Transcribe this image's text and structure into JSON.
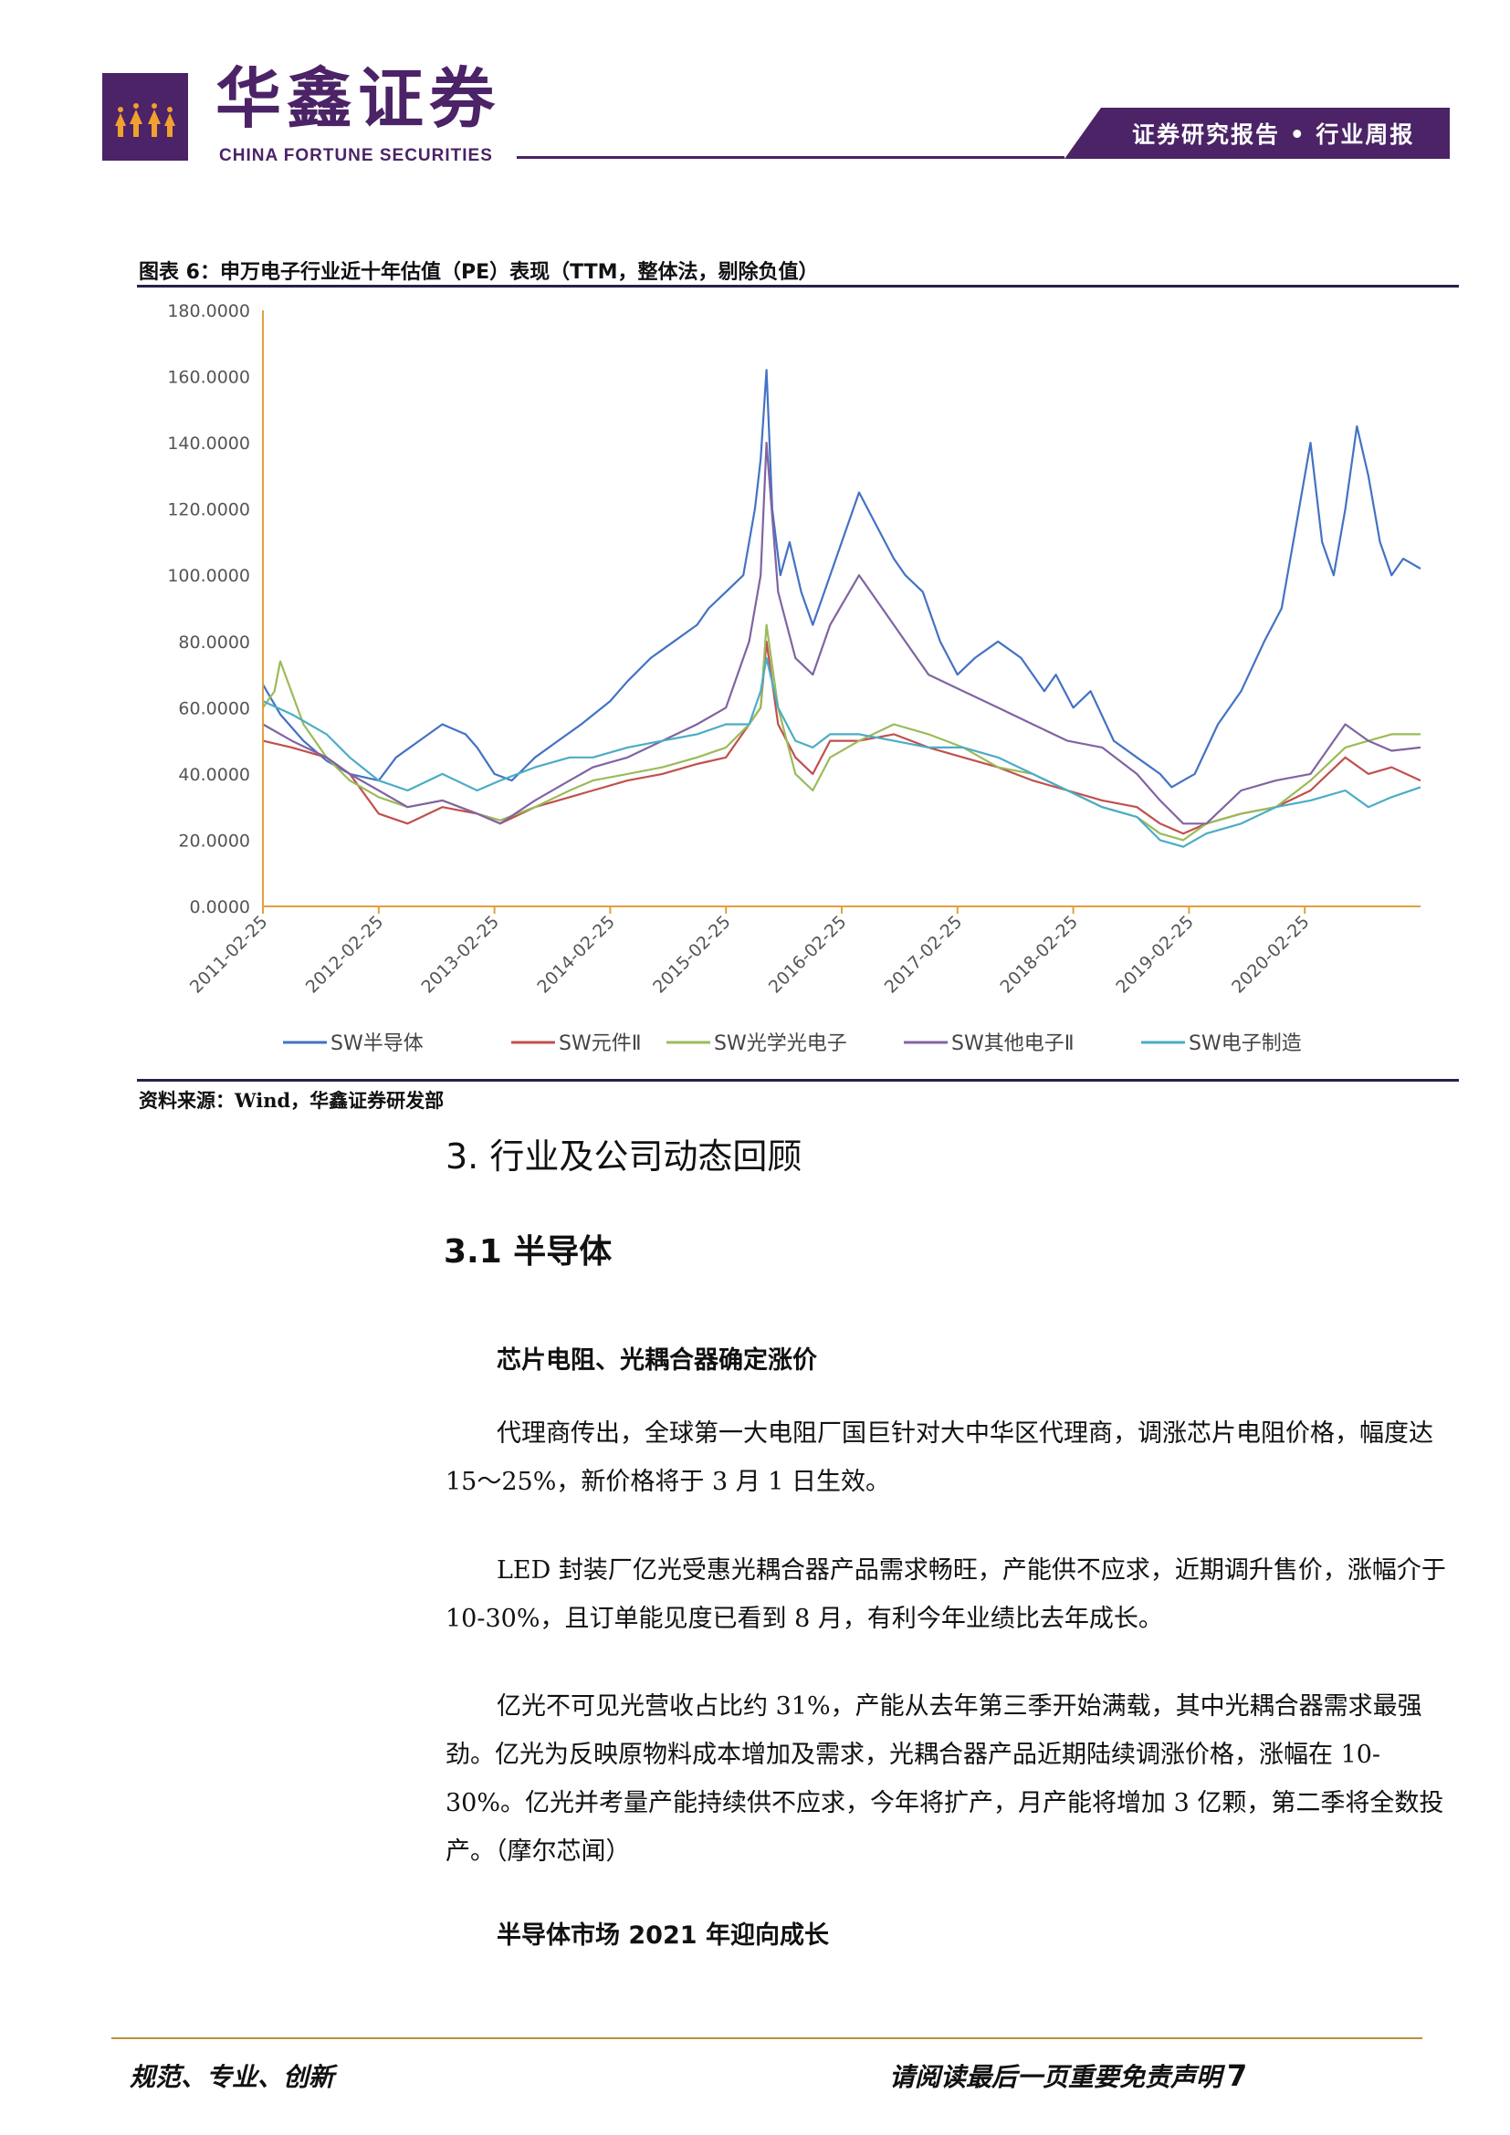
{
  "header": {
    "logo_cn": "华鑫证券",
    "logo_en": "CHINA FORTUNE SECURITIES",
    "report_type": "证券研究报告 • 行业周报"
  },
  "figure": {
    "caption": "图表 6：申万电子行业近十年估值（PE）表现（TTM，整体法，剔除负值）",
    "source": "资料来源：Wind，华鑫证券研发部"
  },
  "chart_data": {
    "type": "line",
    "ylim": [
      0,
      180
    ],
    "y_ticks": [
      "0.0000",
      "20.0000",
      "40.0000",
      "60.0000",
      "80.0000",
      "100.0000",
      "120.0000",
      "140.0000",
      "160.0000",
      "180.0000"
    ],
    "x_ticks": [
      "2011-02-25",
      "2012-02-25",
      "2013-02-25",
      "2014-02-25",
      "2015-02-25",
      "2016-02-25",
      "2017-02-25",
      "2018-02-25",
      "2019-02-25",
      "2020-02-25"
    ],
    "x_range": [
      2011.15,
      2021.15
    ],
    "legend_position": "bottom",
    "series": [
      {
        "name": "SW半导体",
        "color": "#4472c4",
        "x": [
          2011.15,
          2011.3,
          2011.5,
          2011.7,
          2011.9,
          2012.15,
          2012.3,
          2012.5,
          2012.7,
          2012.9,
          2013.0,
          2013.15,
          2013.3,
          2013.5,
          2013.7,
          2013.9,
          2014.15,
          2014.3,
          2014.5,
          2014.7,
          2014.9,
          2015.0,
          2015.15,
          2015.3,
          2015.4,
          2015.45,
          2015.5,
          2015.55,
          2015.62,
          2015.7,
          2015.8,
          2015.9,
          2016.0,
          2016.15,
          2016.3,
          2016.45,
          2016.6,
          2016.7,
          2016.85,
          2017.0,
          2017.15,
          2017.3,
          2017.5,
          2017.7,
          2017.9,
          2018.0,
          2018.15,
          2018.3,
          2018.5,
          2018.7,
          2018.9,
          2019.0,
          2019.1,
          2019.2,
          2019.4,
          2019.6,
          2019.8,
          2019.95,
          2020.0,
          2020.1,
          2020.2,
          2020.3,
          2020.4,
          2020.5,
          2020.6,
          2020.7,
          2020.8,
          2020.9,
          2021.0,
          2021.15
        ],
        "values": [
          67,
          58,
          50,
          44,
          40,
          38,
          45,
          50,
          55,
          52,
          48,
          40,
          38,
          45,
          50,
          55,
          62,
          68,
          75,
          80,
          85,
          90,
          95,
          100,
          120,
          135,
          162,
          120,
          100,
          110,
          95,
          85,
          95,
          110,
          125,
          115,
          105,
          100,
          95,
          80,
          70,
          75,
          80,
          75,
          65,
          70,
          60,
          65,
          50,
          45,
          40,
          36,
          38,
          40,
          55,
          65,
          80,
          90,
          100,
          120,
          140,
          110,
          100,
          120,
          145,
          130,
          110,
          100,
          105,
          102
        ]
      },
      {
        "name": "SW元件Ⅱ",
        "color": "#c0504d",
        "x": [
          2011.15,
          2011.4,
          2011.7,
          2011.9,
          2012.15,
          2012.4,
          2012.7,
          2013.0,
          2013.2,
          2013.5,
          2013.8,
          2014.0,
          2014.3,
          2014.6,
          2014.9,
          2015.15,
          2015.35,
          2015.45,
          2015.5,
          2015.6,
          2015.75,
          2015.9,
          2016.05,
          2016.3,
          2016.6,
          2016.9,
          2017.2,
          2017.5,
          2017.8,
          2018.1,
          2018.4,
          2018.7,
          2018.9,
          2019.1,
          2019.3,
          2019.6,
          2019.9,
          2020.2,
          2020.5,
          2020.7,
          2020.9,
          2021.15
        ],
        "values": [
          50,
          48,
          45,
          40,
          28,
          25,
          30,
          28,
          25,
          30,
          33,
          35,
          38,
          40,
          43,
          45,
          55,
          60,
          80,
          55,
          45,
          40,
          50,
          50,
          52,
          48,
          45,
          42,
          38,
          35,
          32,
          30,
          25,
          22,
          25,
          28,
          30,
          35,
          45,
          40,
          42,
          38
        ]
      },
      {
        "name": "SW光学光电子",
        "color": "#9bbb59",
        "x": [
          2011.15,
          2011.25,
          2011.3,
          2011.5,
          2011.7,
          2011.9,
          2012.15,
          2012.4,
          2012.7,
          2013.0,
          2013.2,
          2013.5,
          2013.8,
          2014.0,
          2014.3,
          2014.6,
          2014.9,
          2015.15,
          2015.35,
          2015.45,
          2015.5,
          2015.6,
          2015.75,
          2015.9,
          2016.05,
          2016.3,
          2016.6,
          2016.9,
          2017.2,
          2017.5,
          2017.8,
          2018.1,
          2018.4,
          2018.7,
          2018.9,
          2019.1,
          2019.3,
          2019.6,
          2019.9,
          2020.2,
          2020.5,
          2020.7,
          2020.9,
          2021.15
        ],
        "values": [
          60,
          65,
          74,
          55,
          45,
          38,
          33,
          30,
          32,
          28,
          26,
          30,
          35,
          38,
          40,
          42,
          45,
          48,
          55,
          60,
          85,
          60,
          40,
          35,
          45,
          50,
          55,
          52,
          48,
          42,
          40,
          35,
          30,
          27,
          22,
          20,
          25,
          28,
          30,
          38,
          48,
          50,
          52,
          52
        ]
      },
      {
        "name": "SW其他电子Ⅱ",
        "color": "#8064a2",
        "x": [
          2011.15,
          2011.4,
          2011.7,
          2011.9,
          2012.15,
          2012.4,
          2012.7,
          2013.0,
          2013.2,
          2013.5,
          2013.8,
          2014.0,
          2014.3,
          2014.6,
          2014.9,
          2015.15,
          2015.35,
          2015.45,
          2015.5,
          2015.6,
          2015.75,
          2015.9,
          2016.05,
          2016.3,
          2016.5,
          2016.7,
          2016.9,
          2017.2,
          2017.5,
          2017.8,
          2018.1,
          2018.4,
          2018.7,
          2018.9,
          2019.1,
          2019.3,
          2019.6,
          2019.9,
          2020.2,
          2020.5,
          2020.7,
          2020.9,
          2021.15
        ],
        "values": [
          55,
          50,
          45,
          40,
          35,
          30,
          32,
          28,
          25,
          32,
          38,
          42,
          45,
          50,
          55,
          60,
          80,
          100,
          140,
          95,
          75,
          70,
          85,
          100,
          90,
          80,
          70,
          65,
          60,
          55,
          50,
          48,
          40,
          32,
          25,
          25,
          35,
          38,
          40,
          55,
          50,
          47,
          48
        ]
      },
      {
        "name": "SW电子制造",
        "color": "#4bacc6",
        "x": [
          2011.15,
          2011.4,
          2011.7,
          2011.9,
          2012.15,
          2012.4,
          2012.7,
          2013.0,
          2013.2,
          2013.5,
          2013.8,
          2014.0,
          2014.3,
          2014.6,
          2014.9,
          2015.15,
          2015.35,
          2015.45,
          2015.5,
          2015.6,
          2015.75,
          2015.9,
          2016.05,
          2016.3,
          2016.6,
          2016.9,
          2017.2,
          2017.5,
          2017.8,
          2018.1,
          2018.4,
          2018.7,
          2018.9,
          2019.1,
          2019.3,
          2019.6,
          2019.9,
          2020.2,
          2020.5,
          2020.7,
          2020.9,
          2021.15
        ],
        "values": [
          62,
          58,
          52,
          45,
          38,
          35,
          40,
          35,
          38,
          42,
          45,
          45,
          48,
          50,
          52,
          55,
          55,
          65,
          75,
          60,
          50,
          48,
          52,
          52,
          50,
          48,
          48,
          45,
          40,
          35,
          30,
          27,
          20,
          18,
          22,
          25,
          30,
          32,
          35,
          30,
          33,
          36
        ]
      }
    ]
  },
  "section": {
    "h3": "3.  行业及公司动态回顾",
    "h31": "3.1 半导体"
  },
  "body": {
    "sub1": "芯片电阻、光耦合器确定涨价",
    "p1": "代理商传出，全球第一大电阻厂国巨针对大中华区代理商，调涨芯片电阻价格，幅度达 15～25%，新价格将于 3 月 1 日生效。",
    "p2": "LED 封装厂亿光受惠光耦合器产品需求畅旺，产能供不应求，近期调升售价，涨幅介于 10-30%，且订单能见度已看到 8 月，有利今年业绩比去年成长。",
    "p3": "亿光不可见光营收占比约 31%，产能从去年第三季开始满载，其中光耦合器需求最强劲。亿光为反映原物料成本增加及需求，光耦合器产品近期陆续调涨价格，涨幅在 10-30%。亿光并考量产能持续供不应求，今年将扩产，月产能将增加 3 亿颗，第二季将全数投产。（摩尔芯闻）",
    "sub2": "半导体市场 2021 年迎向成长"
  },
  "footer": {
    "left": "规范、专业、创新",
    "right": "请阅读最后一页重要免责声明",
    "page": "7"
  }
}
